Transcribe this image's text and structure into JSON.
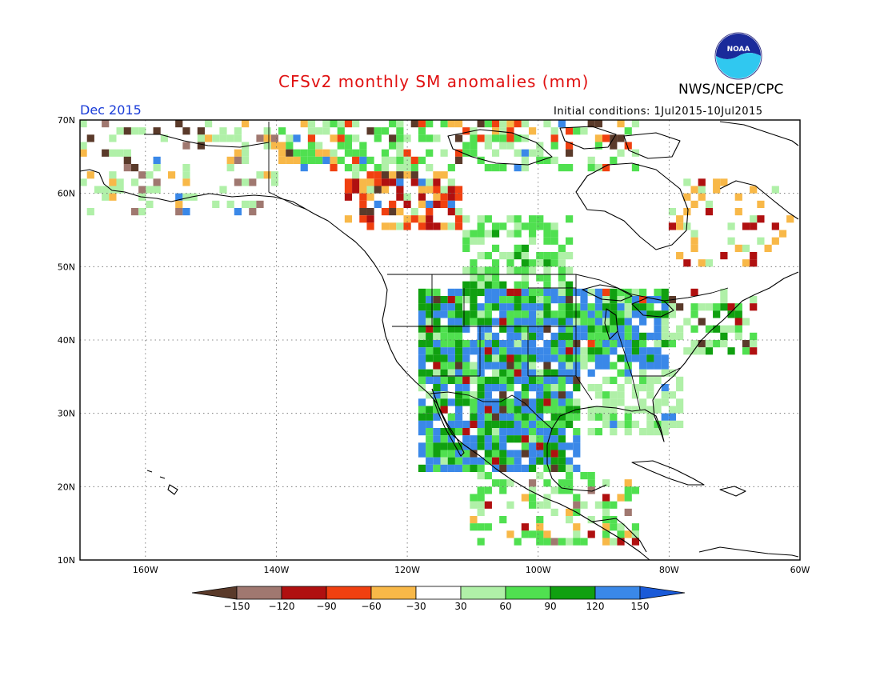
{
  "title": "CFSv2 monthly SM anomalies (mm)",
  "agency": "NWS/NCEP/CPC",
  "logo_text": "NOAA",
  "valid_month": "Dec 2015",
  "initial_conditions": "Initial conditions: 1Jul2015-10Jul2015",
  "map": {
    "lat_labels": [
      "70N",
      "60N",
      "50N",
      "40N",
      "30N",
      "20N",
      "10N"
    ],
    "lon_labels": [
      "160W",
      "140W",
      "120W",
      "100W",
      "80W",
      "60W"
    ]
  },
  "legend": {
    "labels": [
      "-150",
      "-120",
      "-90",
      "-60",
      "-30",
      "30",
      "60",
      "90",
      "120",
      "150"
    ],
    "colors": [
      "#5a3a2a",
      "#a07870",
      "#b01010",
      "#f04010",
      "#f8b848",
      "#ffffff",
      "#b0f0a8",
      "#50e050",
      "#10a010",
      "#3a88e8",
      "#1a5ad8"
    ]
  }
}
